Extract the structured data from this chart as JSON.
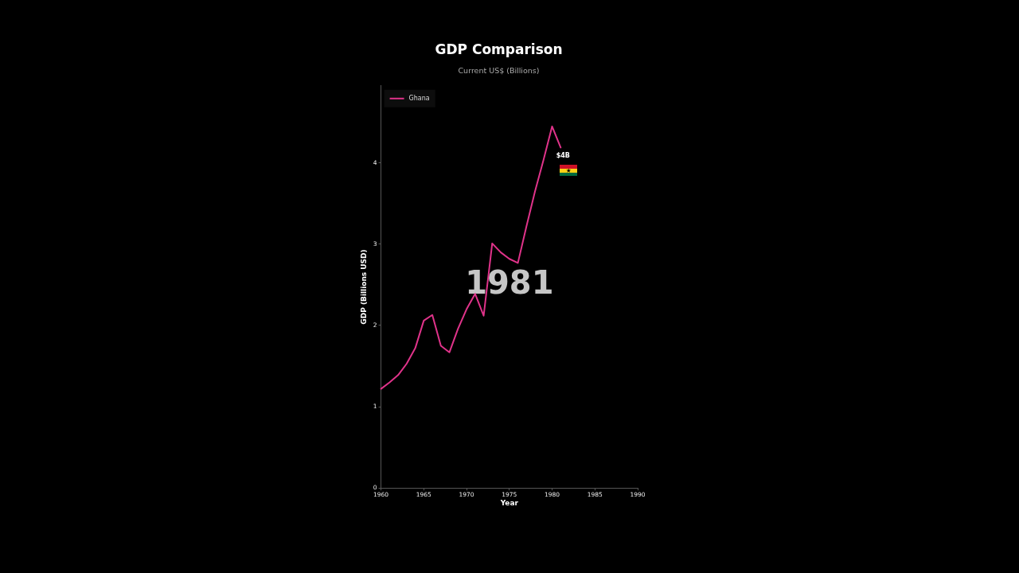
{
  "chart_data": {
    "type": "line",
    "title": "GDP Comparison",
    "subtitle": "Current US$ (Billions)",
    "xlabel": "Year",
    "ylabel": "GDP (Billions USD)",
    "annotations": [
      "1981"
    ],
    "x": [
      1960,
      1961,
      1962,
      1963,
      1964,
      1965,
      1966,
      1967,
      1968,
      1969,
      1970,
      1971,
      1972,
      1973,
      1974,
      1975,
      1976,
      1977,
      1978,
      1979,
      1980,
      1981
    ],
    "series": [
      {
        "name": "Ghana",
        "color": "#e0338a",
        "values": [
          1.22,
          1.3,
          1.39,
          1.53,
          1.72,
          2.06,
          2.13,
          1.75,
          1.67,
          1.96,
          2.2,
          2.39,
          2.12,
          3.01,
          2.9,
          2.82,
          2.77,
          3.22,
          3.65,
          4.04,
          4.45,
          4.19
        ],
        "value_labels": [
          null,
          null,
          null,
          null,
          null,
          null,
          null,
          null,
          null,
          null,
          null,
          null,
          null,
          null,
          null,
          null,
          null,
          null,
          null,
          null,
          null,
          "$4B"
        ]
      }
    ],
    "xlim": [
      1960,
      1990
    ],
    "xticks": [
      1960,
      1965,
      1970,
      1975,
      1980,
      1985,
      1990
    ],
    "ylim": [
      0,
      4.95
    ],
    "yticks": [
      0,
      1,
      2,
      3,
      4
    ],
    "legend": "top left",
    "marker": "none",
    "line_style": "solid"
  }
}
